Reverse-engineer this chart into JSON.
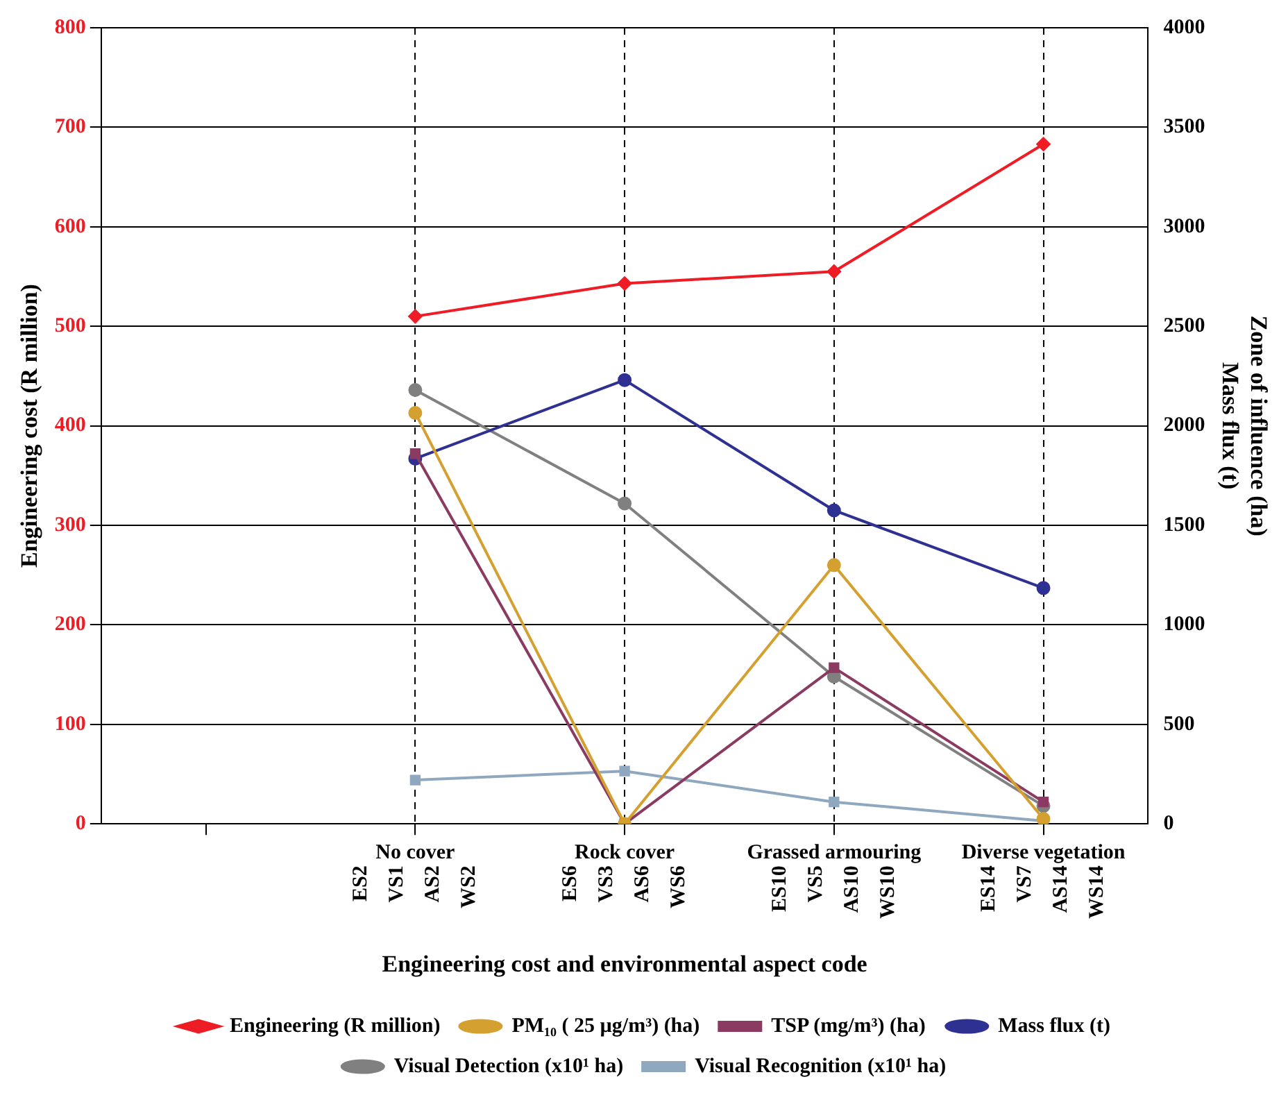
{
  "chart_data": {
    "type": "line",
    "xlabel": "Engineering cost and environmental aspect code",
    "ylabel": "Engineering cost (R million)",
    "y2label": "Zone of influence (ha)\nMass flux (t)",
    "categories": [
      null,
      "No cover",
      "Rock cover",
      "Grassed armouring",
      "Diverse vegetation"
    ],
    "series": [
      {
        "name": "Engineering (R million)",
        "color": "#ee1c25",
        "marker": "diamond",
        "values": [
          null,
          510,
          543,
          555,
          683
        ]
      },
      {
        "name": "PM₁₀ ( 25 µg/m³) (ha)",
        "color": "#d4a030",
        "marker": "circle",
        "axis": "y2",
        "values": [
          null,
          2065,
          0,
          1300,
          25
        ]
      },
      {
        "name": "TSP (mg/m³) (ha)",
        "color": "#8b3a62",
        "marker": "square",
        "axis": "y2",
        "values": [
          null,
          1860,
          0,
          785,
          110
        ]
      },
      {
        "name": "Mass flux (t)",
        "color": "#2e3192",
        "marker": "circle",
        "axis": "y2",
        "values": [
          null,
          1835,
          2230,
          1575,
          1185
        ]
      },
      {
        "name": "Visual Detection (x10¹ ha)",
        "color": "#808080",
        "marker": "circle",
        "axis": "y2",
        "values": [
          null,
          2180,
          1610,
          740,
          90
        ]
      },
      {
        "name": "Visual Recognition (x10¹ ha)",
        "color": "#8fa8c0",
        "marker": "square",
        "axis": "y2",
        "values": [
          null,
          220,
          265,
          110,
          15
        ]
      }
    ],
    "ylim": [
      0,
      800
    ],
    "yticks": [
      0,
      100,
      200,
      300,
      400,
      500,
      600,
      700,
      800
    ],
    "y2lim": [
      0,
      4000
    ],
    "y2ticks": [
      0,
      500,
      1000,
      1500,
      2000,
      2500,
      3000,
      3500,
      4000
    ],
    "grid": true,
    "legend": "bottom",
    "annotations": [
      "ES2",
      "VS1",
      "AS2",
      "WS2",
      "ES6",
      "VS3",
      "AS6",
      "WS6",
      "ES10",
      "VS5",
      "AS10",
      "WS10",
      "ES14",
      "VS7",
      "AS14",
      "WS14"
    ]
  }
}
